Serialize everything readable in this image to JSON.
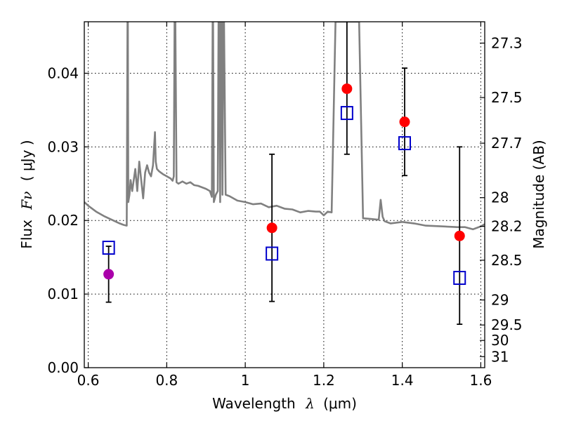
{
  "chart_data": {
    "type": "scatter",
    "title": "",
    "xlabel_text": "Wavelength",
    "xlabel_symbol": "λ",
    "xlabel_unit": "(μm)",
    "ylabel_text": "Flux",
    "ylabel_symbol": "Fν",
    "ylabel_unit": "( μJy )",
    "y2label": "Magnitude (AB)",
    "xlim": [
      0.59,
      1.61
    ],
    "ylim": [
      0.0,
      0.047
    ],
    "grid": true,
    "x_ticks": [
      0.6,
      0.8,
      1.0,
      1.2,
      1.4,
      1.6
    ],
    "x_tick_labels": [
      "0.6",
      "0.8",
      "1",
      "1.2",
      "1.4",
      "1.6"
    ],
    "y_ticks": [
      0.0,
      0.01,
      0.02,
      0.03,
      0.04
    ],
    "y_tick_labels": [
      "0.00",
      "0.01",
      "0.02",
      "0.03",
      "0.04"
    ],
    "y2_tick_labels": [
      "27.3",
      "27.5",
      "27.7",
      "28",
      "28.2",
      "28.5",
      "29",
      "29.5",
      "30",
      "31"
    ],
    "y2_tick_flux": [
      0.0441,
      0.0367,
      0.0305,
      0.0231,
      0.0192,
      0.0146,
      0.0092,
      0.0058,
      0.0037,
      0.0015
    ],
    "colors": {
      "template": "#808080",
      "observed": "#ff0000",
      "observed_first": "#aa00aa",
      "model": "#0000cc",
      "errorbar": "#000000",
      "grid": "#000000"
    },
    "series": [
      {
        "kind": "line",
        "x": [
          0.59,
          0.6,
          0.62,
          0.64,
          0.66,
          0.68,
          0.69,
          0.698,
          0.7,
          0.701,
          0.702,
          0.705,
          0.708,
          0.712,
          0.72,
          0.725,
          0.73,
          0.735,
          0.74,
          0.745,
          0.75,
          0.755,
          0.76,
          0.765,
          0.77,
          0.772,
          0.775,
          0.78,
          0.79,
          0.8,
          0.81,
          0.815,
          0.818,
          0.82,
          0.822,
          0.825,
          0.83,
          0.84,
          0.85,
          0.86,
          0.87,
          0.88,
          0.89,
          0.9,
          0.91,
          0.915,
          0.917,
          0.918,
          0.92,
          0.925,
          0.93,
          0.932,
          0.934,
          0.936,
          0.938,
          0.94,
          0.942,
          0.944,
          0.946,
          0.95,
          0.96,
          0.98,
          1.0,
          1.02,
          1.04,
          1.06,
          1.08,
          1.1,
          1.12,
          1.14,
          1.16,
          1.18,
          1.19,
          1.2,
          1.21,
          1.22,
          1.23,
          1.24,
          1.25,
          1.26,
          1.27,
          1.28,
          1.29,
          1.3,
          1.32,
          1.34,
          1.345,
          1.35,
          1.355,
          1.37,
          1.4,
          1.43,
          1.46,
          1.5,
          1.54,
          1.56,
          1.58,
          1.6,
          1.61
        ],
        "y": [
          0.0225,
          0.022,
          0.0212,
          0.0206,
          0.0201,
          0.0196,
          0.0194,
          0.0193,
          0.047,
          0.047,
          0.0225,
          0.0235,
          0.0255,
          0.024,
          0.027,
          0.024,
          0.028,
          0.0255,
          0.023,
          0.0265,
          0.0275,
          0.0265,
          0.026,
          0.0275,
          0.032,
          0.028,
          0.027,
          0.0267,
          0.0263,
          0.026,
          0.0257,
          0.0254,
          0.026,
          0.047,
          0.047,
          0.0252,
          0.025,
          0.0253,
          0.025,
          0.0252,
          0.0248,
          0.0247,
          0.0245,
          0.0243,
          0.024,
          0.0232,
          0.047,
          0.047,
          0.0225,
          0.0235,
          0.024,
          0.047,
          0.047,
          0.0225,
          0.047,
          0.047,
          0.0235,
          0.047,
          0.047,
          0.0235,
          0.0233,
          0.0227,
          0.0225,
          0.0222,
          0.0223,
          0.0218,
          0.022,
          0.0216,
          0.0215,
          0.0211,
          0.0213,
          0.0212,
          0.0212,
          0.0207,
          0.0212,
          0.0211,
          0.047,
          0.047,
          0.047,
          0.047,
          0.047,
          0.047,
          0.047,
          0.0203,
          0.0202,
          0.0201,
          0.0228,
          0.0205,
          0.0199,
          0.0196,
          0.0198,
          0.0196,
          0.0193,
          0.0192,
          0.0191,
          0.0191,
          0.0188,
          0.0192,
          0.0195
        ]
      },
      {
        "kind": "errorbar",
        "x": [
          0.652,
          1.068,
          1.259,
          1.406,
          1.546
        ],
        "y": [
          0.0127,
          0.019,
          0.0379,
          0.0334,
          0.0179
        ],
        "yerr_low": [
          0.0038,
          0.01,
          0.0089,
          0.0073,
          0.012
        ],
        "yerr_high": [
          0.0038,
          0.01,
          0.0092,
          0.0073,
          0.0121
        ]
      },
      {
        "kind": "scatter",
        "marker": "square-open",
        "x": [
          0.652,
          1.068,
          1.259,
          1.406,
          1.546
        ],
        "y": [
          0.0163,
          0.0155,
          0.0346,
          0.0305,
          0.0122
        ]
      }
    ]
  }
}
